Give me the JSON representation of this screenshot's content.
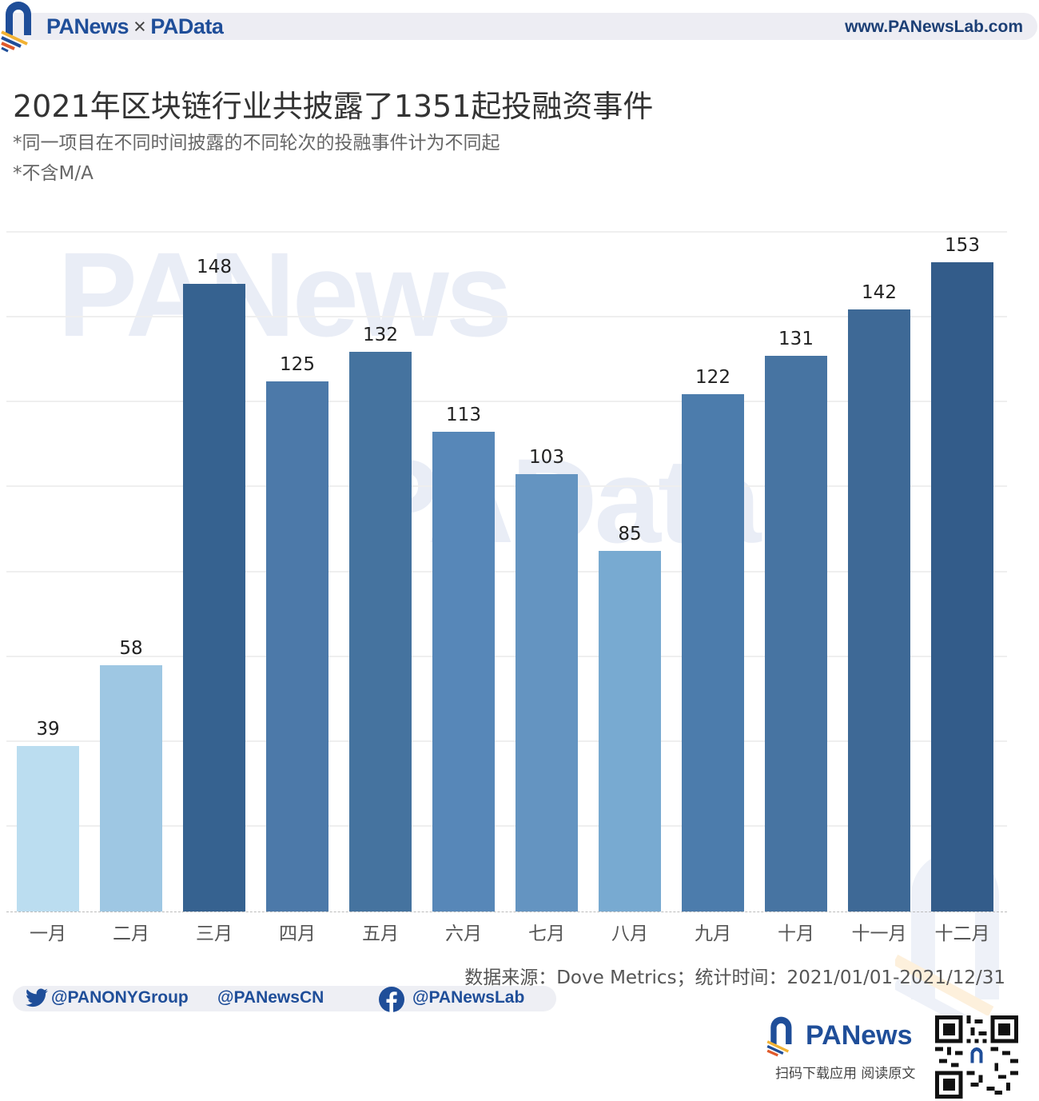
{
  "header": {
    "brand_left": "PANews",
    "brand_sep": "×",
    "brand_right": "PAData",
    "website": "www.PANewsLab.com"
  },
  "title": "2021年区块链行业共披露了1351起投融资事件",
  "subtitle_lines": [
    "*同一项目在不同时间披露的不同轮次的投融事件计为不同起",
    "*不含M/A"
  ],
  "watermarks": [
    "PANews",
    "PAData"
  ],
  "chart_data": {
    "type": "bar",
    "title": "2021年区块链行业共披露了1351起投融资事件",
    "subtitle": "*同一项目在不同时间披露的不同轮次的投融事件计为不同起; *不含M/A",
    "categories": [
      "一月",
      "二月",
      "三月",
      "四月",
      "五月",
      "六月",
      "七月",
      "八月",
      "九月",
      "十月",
      "十一月",
      "十二月"
    ],
    "values": [
      39,
      58,
      148,
      125,
      132,
      113,
      103,
      85,
      122,
      131,
      142,
      153
    ],
    "colors": [
      "#b9dcef",
      "#9bc5e2",
      "#2f5d8c",
      "#4675a6",
      "#3f6e9c",
      "#5283b6",
      "#5f91bf",
      "#74a7cf",
      "#4678a9",
      "#41709f",
      "#386493",
      "#2c5786"
    ],
    "xlabel": "",
    "ylabel": "",
    "ylim": [
      0,
      160
    ],
    "gridlines": [
      0,
      20,
      40,
      60,
      80,
      100,
      120,
      140,
      160
    ],
    "grid": true,
    "data_labels": true,
    "legend": "none"
  },
  "footer": {
    "source": "数据来源：Dove Metrics；统计时间：2021/01/01-2021/12/31",
    "twitter_handle": "@PANONYGroup",
    "weibo_handle": "@PANewsCN",
    "facebook_handle": "@PANewsLab",
    "brand": "PANews",
    "cta": "扫码下载应用  阅读原文",
    "qr_label": "PANews"
  }
}
